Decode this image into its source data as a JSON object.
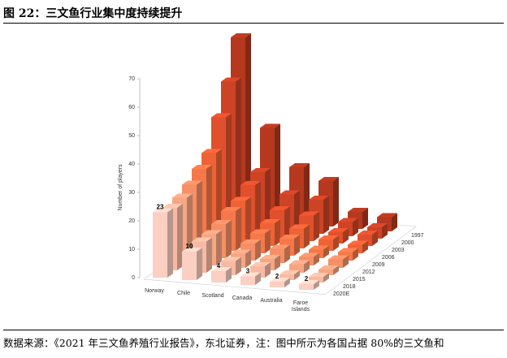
{
  "title": "图 22：三文鱼行业集中度持续提升",
  "source": "数据来源：《2021 年三文鱼养殖行业报告》，东北证券，注：图中所示为各国占据 80%的三文鱼和",
  "chart_data": {
    "type": "bar3d",
    "y_label": "Number of players",
    "categories": [
      "Norway",
      "Chile",
      "Scotland",
      "Canada",
      "Australia",
      "Faroe Islands"
    ],
    "series": [
      {
        "name": "1997",
        "color": "#b5381f",
        "values": [
          64,
          33,
          20,
          16,
          6,
          5
        ]
      },
      {
        "name": "2000",
        "color": "#cc4326",
        "values": [
          51,
          20,
          13,
          12,
          5,
          4
        ]
      },
      {
        "name": "2003",
        "color": "#e0502c",
        "values": [
          41,
          18,
          10,
          9,
          4,
          4
        ]
      },
      {
        "name": "2006",
        "color": "#ee6236",
        "values": [
          31,
          15,
          8,
          7,
          4,
          3
        ]
      },
      {
        "name": "2009",
        "color": "#f4784a",
        "values": [
          28,
          14,
          7,
          6,
          3,
          3
        ]
      },
      {
        "name": "2012",
        "color": "#f68f66",
        "values": [
          25,
          12,
          6,
          5,
          3,
          3
        ]
      },
      {
        "name": "2015",
        "color": "#f7a583",
        "values": [
          23,
          11,
          5,
          4,
          3,
          2
        ]
      },
      {
        "name": "2018",
        "color": "#f8b9a2",
        "values": [
          22,
          11,
          5,
          4,
          2,
          2
        ]
      },
      {
        "name": "2020E",
        "color": "#fbcfc2",
        "values": [
          23,
          10,
          4,
          3,
          2,
          2
        ],
        "data_labels": true
      }
    ],
    "ylim": [
      0,
      70
    ],
    "yticks": [
      0,
      10,
      20,
      30,
      40,
      50,
      60,
      70
    ]
  }
}
